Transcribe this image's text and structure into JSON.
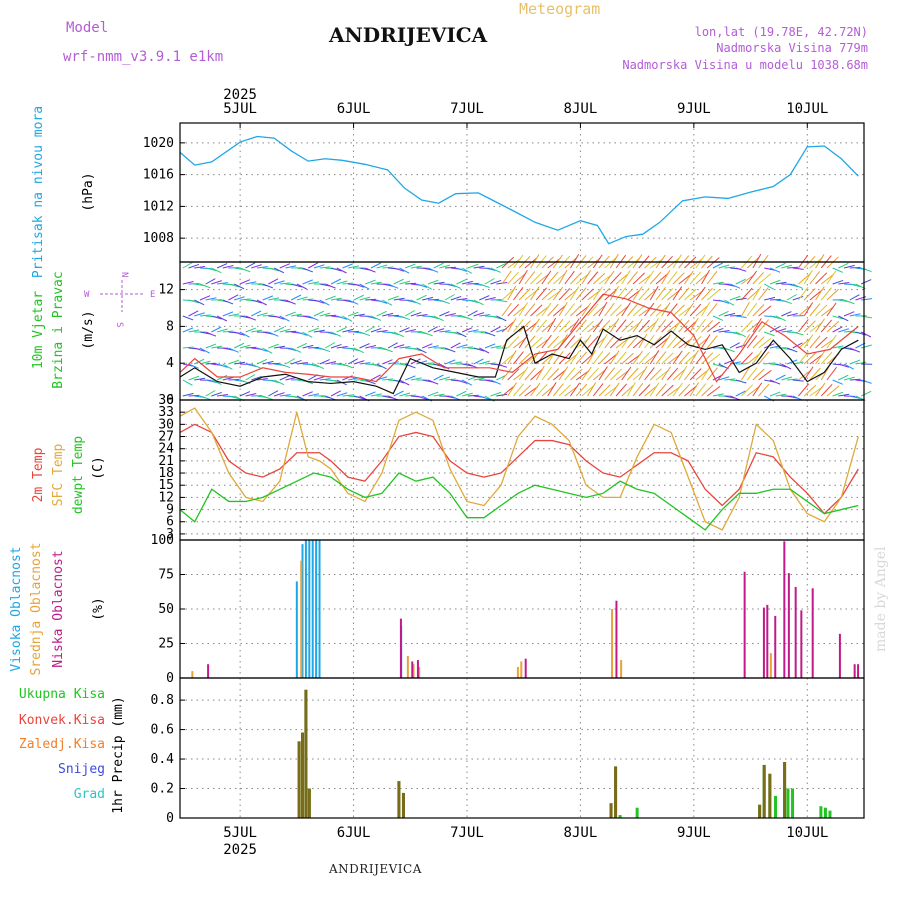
{
  "header": {
    "model_label": "Model",
    "model_name": "wrf-nmm_v3.9.1  e1km",
    "station": "ANDRIJEVICA",
    "product": "Meteogram",
    "coords": "lon,lat (19.78E, 42.72N)",
    "elevation": "Nadmorska Visina 779m",
    "model_elevation": "Nadmorska Visina u modelu 1038.68m"
  },
  "footer": {
    "station": "ANDRIJEVICA",
    "credit": "made by Angel"
  },
  "colors": {
    "pressure": "#1ea7e6",
    "temp2m": "#e8453c",
    "sfc_temp": "#e0a93a",
    "dewpt": "#22c322",
    "wind_speed": "#111111",
    "gust": "#e8453c",
    "cloud_high": "#1ea7e6",
    "cloud_mid": "#e8a23a",
    "cloud_low": "#c01a8a",
    "precip_total": "#22c322",
    "precip_conv": "#e8453c",
    "precip_frozen": "#f07f2a",
    "snow": "#3b4bd9",
    "hail": "#2ec4c4",
    "precip_overlap": "#7a6a1a"
  },
  "chart_data": [
    {
      "type": "line",
      "panel": "pressure",
      "title": "",
      "ylabel_lines": [
        "Pritisak na nivou mora",
        "(hPa)"
      ],
      "ylim": [
        1005,
        1022.5
      ],
      "yticks": [
        1008,
        1012,
        1016,
        1020
      ],
      "x_top_year": "2025",
      "x_days": [
        "5JUL",
        "6JUL",
        "7JUL",
        "8JUL",
        "9JUL",
        "10JUL"
      ],
      "x_bottom_year": "2025",
      "x_range_days": [
        4.47,
        10.5
      ],
      "grid": true,
      "series": [
        {
          "x": [
            4.47,
            4.6,
            4.75,
            5.0,
            5.15,
            5.3,
            5.45,
            5.6,
            5.75,
            5.9,
            6.1,
            6.3,
            6.45,
            6.6,
            6.75,
            6.9,
            7.1,
            7.25,
            7.4,
            7.6,
            7.8,
            8.0,
            8.15,
            8.25,
            8.4,
            8.55,
            8.7,
            8.9,
            9.1,
            9.3,
            9.5,
            9.7,
            9.85,
            10.0,
            10.15,
            10.3,
            10.45
          ],
          "y": [
            1018.8,
            1017.2,
            1017.6,
            1020.1,
            1020.8,
            1020.6,
            1019.0,
            1017.7,
            1018.0,
            1017.8,
            1017.3,
            1016.6,
            1014.3,
            1012.8,
            1012.4,
            1013.6,
            1013.7,
            1012.6,
            1011.5,
            1010.0,
            1009.0,
            1010.2,
            1009.6,
            1007.3,
            1008.2,
            1008.5,
            1010.0,
            1012.7,
            1013.2,
            1013.0,
            1013.8,
            1014.5,
            1016.0,
            1019.5,
            1019.6,
            1018.0,
            1015.8
          ]
        }
      ]
    },
    {
      "type": "line",
      "panel": "wind",
      "ylabel_lines": [
        "10m Vjetar",
        "Brzina i Pravac",
        "(m/s)"
      ],
      "compass_labels": [
        "N",
        "W",
        "E",
        "S"
      ],
      "ylim": [
        0,
        15
      ],
      "yticks": [
        0,
        4,
        8,
        12
      ],
      "grid": true,
      "series": [
        {
          "name": "speed",
          "x": [
            4.47,
            4.6,
            4.8,
            5.0,
            5.2,
            5.4,
            5.6,
            5.8,
            6.0,
            6.2,
            6.35,
            6.5,
            6.7,
            6.9,
            7.1,
            7.25,
            7.35,
            7.5,
            7.6,
            7.75,
            7.9,
            8.0,
            8.1,
            8.2,
            8.35,
            8.5,
            8.65,
            8.8,
            8.95,
            9.1,
            9.25,
            9.4,
            9.55,
            9.7,
            9.85,
            10.0,
            10.15,
            10.3,
            10.45
          ],
          "y": [
            2.5,
            3.5,
            2.0,
            1.5,
            2.5,
            2.8,
            2.0,
            1.8,
            2.0,
            1.5,
            0.7,
            4.5,
            3.5,
            3.0,
            2.5,
            2.5,
            6.5,
            8.0,
            4.0,
            5.0,
            4.5,
            6.5,
            5.0,
            7.7,
            6.5,
            7.0,
            6.0,
            7.5,
            6.0,
            5.5,
            6.0,
            3.0,
            4.0,
            6.5,
            4.5,
            2.0,
            3.0,
            5.5,
            6.5
          ]
        },
        {
          "name": "gust",
          "x": [
            4.47,
            4.6,
            4.8,
            5.0,
            5.2,
            5.4,
            5.6,
            5.8,
            6.0,
            6.2,
            6.4,
            6.6,
            6.8,
            7.0,
            7.2,
            7.4,
            7.6,
            7.8,
            8.0,
            8.2,
            8.4,
            8.6,
            8.8,
            9.0,
            9.2,
            9.4,
            9.6,
            9.8,
            10.0,
            10.2,
            10.45
          ],
          "y": [
            3.0,
            4.5,
            2.5,
            2.5,
            3.5,
            3.0,
            2.8,
            2.5,
            2.5,
            2.0,
            4.5,
            5.0,
            3.5,
            3.5,
            3.5,
            3.0,
            5.0,
            5.5,
            8.5,
            11.5,
            11.0,
            10.0,
            9.5,
            7.0,
            2.0,
            5.0,
            8.5,
            7.0,
            5.0,
            5.5,
            8.0
          ]
        }
      ]
    },
    {
      "type": "line",
      "panel": "temperature",
      "ylabel_lines": [
        "2m Temp",
        "SFC Temp",
        "dewpt Temp",
        "(C)"
      ],
      "ylim": [
        1.5,
        36
      ],
      "yticks": [
        3,
        6,
        9,
        12,
        15,
        18,
        21,
        24,
        27,
        30,
        33,
        36
      ],
      "grid": true,
      "series": [
        {
          "name": "2m Temp",
          "x": [
            4.47,
            4.6,
            4.75,
            4.9,
            5.05,
            5.2,
            5.35,
            5.5,
            5.6,
            5.7,
            5.8,
            5.95,
            6.1,
            6.25,
            6.4,
            6.55,
            6.7,
            6.85,
            7.0,
            7.15,
            7.3,
            7.45,
            7.6,
            7.75,
            7.9,
            8.05,
            8.2,
            8.35,
            8.5,
            8.65,
            8.8,
            8.95,
            9.1,
            9.25,
            9.4,
            9.55,
            9.7,
            9.85,
            10.0,
            10.15,
            10.3,
            10.45
          ],
          "y": [
            28,
            30,
            28,
            21,
            18,
            17,
            19,
            23,
            23,
            23,
            21,
            17,
            16,
            21,
            27,
            28,
            27,
            21,
            18,
            17,
            18,
            22,
            26,
            26,
            25,
            21,
            18,
            17,
            20,
            23,
            23,
            21,
            14,
            10,
            14,
            23,
            22,
            17,
            13,
            8,
            12,
            19
          ]
        },
        {
          "name": "SFC Temp",
          "x": [
            4.47,
            4.6,
            4.75,
            4.9,
            5.05,
            5.2,
            5.35,
            5.5,
            5.6,
            5.7,
            5.8,
            5.95,
            6.1,
            6.25,
            6.4,
            6.55,
            6.7,
            6.85,
            7.0,
            7.15,
            7.3,
            7.45,
            7.6,
            7.75,
            7.9,
            8.05,
            8.2,
            8.35,
            8.5,
            8.65,
            8.8,
            8.95,
            9.1,
            9.25,
            9.4,
            9.55,
            9.7,
            9.85,
            10.0,
            10.15,
            10.3,
            10.45
          ],
          "y": [
            32,
            34,
            28,
            18,
            12,
            11,
            16,
            33,
            22,
            21,
            19,
            13,
            11,
            18,
            31,
            33,
            31,
            19,
            11,
            10,
            15,
            27,
            32,
            30,
            26,
            15,
            12,
            12,
            22,
            30,
            28,
            17,
            6,
            4,
            12,
            30,
            26,
            14,
            8,
            6,
            12,
            27
          ]
        },
        {
          "name": "dewpt Temp",
          "x": [
            4.47,
            4.6,
            4.75,
            4.9,
            5.05,
            5.2,
            5.35,
            5.5,
            5.65,
            5.8,
            5.95,
            6.1,
            6.25,
            6.4,
            6.55,
            6.7,
            6.85,
            7.0,
            7.15,
            7.3,
            7.45,
            7.6,
            7.75,
            7.9,
            8.05,
            8.2,
            8.35,
            8.5,
            8.65,
            8.8,
            8.95,
            9.1,
            9.25,
            9.4,
            9.55,
            9.7,
            9.85,
            10.0,
            10.15,
            10.3,
            10.45
          ],
          "y": [
            9,
            6,
            14,
            11,
            11,
            12,
            14,
            16,
            18,
            17,
            14,
            12,
            13,
            18,
            16,
            17,
            13,
            7,
            7,
            10,
            13,
            15,
            14,
            13,
            12,
            13,
            16,
            14,
            13,
            10,
            7,
            4,
            9,
            13,
            13,
            14,
            14,
            11,
            8,
            9,
            10
          ]
        }
      ]
    },
    {
      "type": "bar",
      "panel": "clouds",
      "ylabel_lines": [
        "Visoka Oblacnost",
        "Srednja Oblacnost",
        "Niska Oblacnost",
        "(%)"
      ],
      "ylim": [
        0,
        100
      ],
      "yticks": [
        0,
        25,
        50,
        75,
        100
      ],
      "grid": true,
      "series": [
        {
          "name": "Visoka Oblacnost",
          "x": [
            5.5,
            5.55,
            5.58,
            5.61,
            5.64,
            5.67,
            5.7,
            6.42
          ],
          "y": [
            70,
            97,
            100,
            100,
            100,
            100,
            100,
            38
          ]
        },
        {
          "name": "Srednja Oblacnost",
          "x": [
            4.57,
            5.53,
            6.47,
            6.52,
            6.57,
            7.44,
            7.47,
            8.27,
            8.35,
            9.67
          ],
          "y": [
            5,
            85,
            16,
            10,
            8,
            8,
            12,
            50,
            13,
            18
          ]
        },
        {
          "name": "Niska Oblacnost",
          "x": [
            4.7,
            6.4,
            6.5,
            6.55,
            7.5,
            8.3,
            9.43,
            9.6,
            9.63,
            9.7,
            9.78,
            9.82,
            9.88,
            9.93,
            10.03,
            10.27,
            10.4,
            10.43
          ],
          "y": [
            10,
            43,
            12,
            13,
            14,
            56,
            77,
            51,
            53,
            45,
            99,
            76,
            66,
            49,
            65,
            32,
            10,
            10
          ]
        }
      ]
    },
    {
      "type": "bar",
      "panel": "precipitation",
      "ylabel_lines": [
        "1hr Precip (mm)"
      ],
      "legend": [
        "Ukupna Kisa",
        "Konvek.Kisa",
        "Zaledj.Kisa",
        "Snijeg",
        "Grad"
      ],
      "ylim": [
        0,
        0.95
      ],
      "yticks": [
        0,
        0.2,
        0.4,
        0.6,
        0.8
      ],
      "grid": true,
      "series": [
        {
          "name": "Ukupna Kisa",
          "x": [
            5.52,
            5.55,
            5.58,
            5.61,
            6.4,
            6.44,
            8.27,
            8.31,
            8.35,
            8.5,
            9.58,
            9.62,
            9.67,
            9.72,
            9.8,
            9.83,
            9.87,
            10.12,
            10.16,
            10.2
          ],
          "y": [
            0.52,
            0.58,
            0.87,
            0.2,
            0.25,
            0.17,
            0.1,
            0.35,
            0.02,
            0.07,
            0.09,
            0.36,
            0.3,
            0.15,
            0.38,
            0.2,
            0.2,
            0.08,
            0.07,
            0.05
          ]
        },
        {
          "name": "Konvek.Kisa",
          "x": [
            5.52,
            5.55,
            5.58,
            5.61,
            6.4,
            6.44,
            8.27,
            8.31,
            9.58,
            9.62,
            9.67,
            9.8
          ],
          "y": [
            0.52,
            0.58,
            0.87,
            0.2,
            0.25,
            0.17,
            0.1,
            0.35,
            0.09,
            0.36,
            0.3,
            0.38
          ]
        }
      ]
    }
  ]
}
